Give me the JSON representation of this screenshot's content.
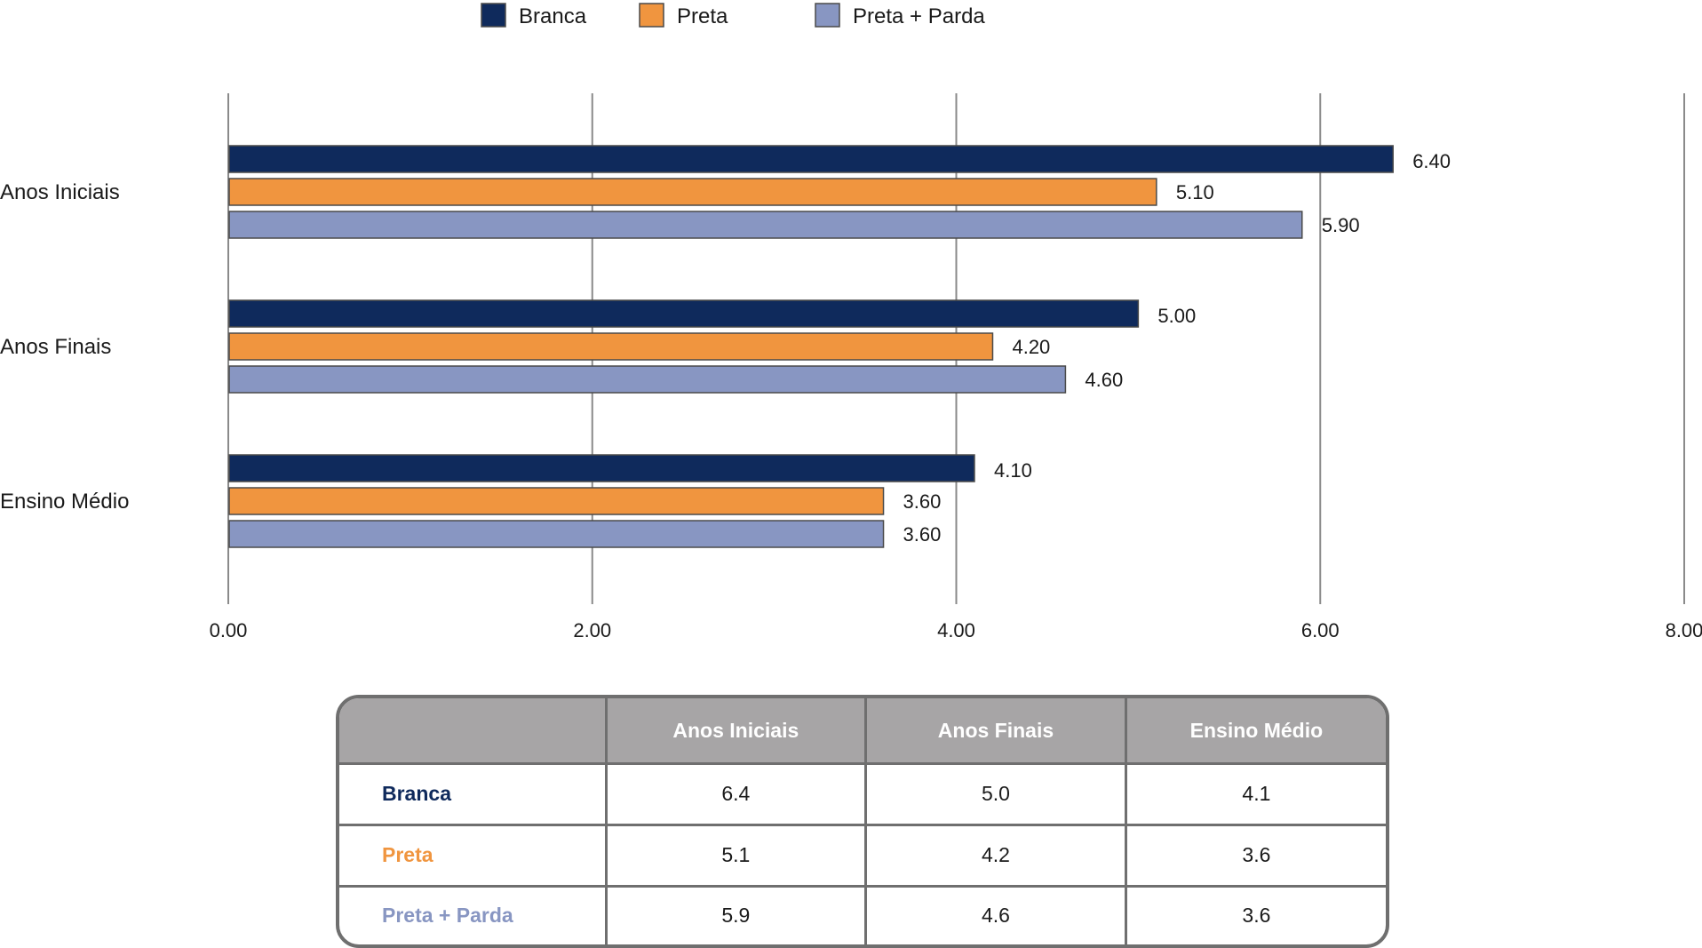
{
  "chart_data": {
    "type": "bar",
    "orientation": "horizontal",
    "categories": [
      "Anos Iniciais",
      "Anos Finais",
      "Ensino Médio"
    ],
    "series": [
      {
        "name": "Branca",
        "color": "#0f2a5c",
        "values": [
          6.4,
          5.0,
          4.1
        ],
        "labels": [
          "6.40",
          "5.00",
          "4.10"
        ]
      },
      {
        "name": "Preta",
        "color": "#f0953f",
        "values": [
          5.1,
          4.2,
          3.6
        ],
        "labels": [
          "5.10",
          "4.20",
          "3.60"
        ]
      },
      {
        "name": "Preta + Parda",
        "color": "#8896c2",
        "values": [
          5.9,
          4.6,
          3.6
        ],
        "labels": [
          "5.90",
          "4.60",
          "3.60"
        ]
      }
    ],
    "xlim": [
      0,
      8
    ],
    "xticks": [
      0,
      2,
      4,
      6,
      8
    ],
    "xtick_labels": [
      "0.00",
      "2.00",
      "4.00",
      "6.00",
      "8.00"
    ],
    "grid": "vertical",
    "legend_position": "top"
  },
  "table": {
    "headers": [
      "",
      "Anos Iniciais",
      "Anos Finais",
      "Ensino Médio"
    ],
    "rows": [
      {
        "label": "Branca",
        "color": "#0f2a5c",
        "values": [
          "6.4",
          "5.0",
          "4.1"
        ]
      },
      {
        "label": "Preta",
        "color": "#f0953f",
        "values": [
          "5.1",
          "4.2",
          "3.6"
        ]
      },
      {
        "label": "Preta + Parda",
        "color": "#8896c2",
        "values": [
          "5.9",
          "4.6",
          "3.6"
        ]
      }
    ]
  }
}
